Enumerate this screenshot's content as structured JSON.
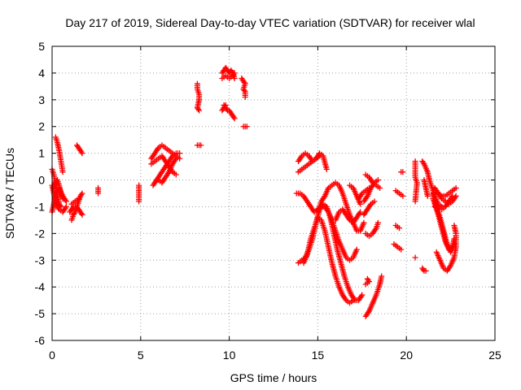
{
  "chart_data": {
    "type": "scatter",
    "title": "Day 217 of 2019, Sidereal Day-to-day VTEC variation (SDTVAR) for receiver wlal",
    "xlabel": "GPS time / hours",
    "ylabel": "SDTVAR / TECUs",
    "xlim": [
      0,
      25
    ],
    "ylim": [
      -6,
      5
    ],
    "xticks": [
      "0",
      "5",
      "10",
      "15",
      "20",
      "25"
    ],
    "yticks": [
      "-6",
      "-5",
      "-4",
      "-3",
      "-2",
      "-1",
      "0",
      "1",
      "2",
      "3",
      "4",
      "5"
    ],
    "grid": true,
    "marker": "+",
    "marker_color": "#ff0000",
    "tracks": [
      [
        [
          0.0,
          0.4
        ],
        [
          0.1,
          0.2
        ],
        [
          0.2,
          -0.2
        ],
        [
          0.3,
          -0.6
        ],
        [
          0.4,
          -0.9
        ],
        [
          0.5,
          -1.0
        ]
      ],
      [
        [
          0.0,
          -0.2
        ],
        [
          0.1,
          -0.5
        ],
        [
          0.2,
          -0.8
        ],
        [
          0.3,
          -1.0
        ],
        [
          0.4,
          -1.1
        ],
        [
          0.6,
          -1.2
        ],
        [
          0.8,
          -1.0
        ]
      ],
      [
        [
          0.0,
          -1.2
        ],
        [
          0.1,
          -0.9
        ],
        [
          0.2,
          -0.6
        ],
        [
          0.3,
          -0.4
        ],
        [
          0.4,
          -0.3
        ],
        [
          0.6,
          -0.6
        ],
        [
          0.8,
          -0.8
        ]
      ],
      [
        [
          0.1,
          -0.3
        ],
        [
          0.2,
          -0.1
        ],
        [
          0.3,
          0.0
        ],
        [
          0.4,
          -0.2
        ],
        [
          0.5,
          -0.5
        ],
        [
          0.6,
          -0.7
        ]
      ],
      [
        [
          0.2,
          1.6
        ],
        [
          0.3,
          1.4
        ],
        [
          0.4,
          1.1
        ],
        [
          0.5,
          0.7
        ],
        [
          0.6,
          0.3
        ]
      ],
      [
        [
          1.1,
          -1.5
        ],
        [
          1.2,
          -1.3
        ],
        [
          1.3,
          -1.2
        ],
        [
          1.4,
          -1.0
        ],
        [
          1.5,
          -0.8
        ],
        [
          1.6,
          -0.6
        ],
        [
          1.7,
          -0.5
        ]
      ],
      [
        [
          1.0,
          -1.2
        ],
        [
          1.2,
          -1.0
        ],
        [
          1.4,
          -1.0
        ],
        [
          1.6,
          -1.2
        ],
        [
          1.7,
          -1.3
        ]
      ],
      [
        [
          1.1,
          -0.9
        ],
        [
          1.3,
          -0.8
        ],
        [
          1.5,
          -0.7
        ]
      ],
      [
        [
          1.4,
          1.3
        ],
        [
          1.5,
          1.2
        ],
        [
          1.6,
          1.1
        ],
        [
          1.7,
          1.0
        ]
      ],
      [
        [
          2.6,
          -0.3
        ],
        [
          2.6,
          -0.5
        ]
      ],
      [
        [
          4.9,
          -0.2
        ],
        [
          4.9,
          -0.4
        ],
        [
          4.9,
          -0.6
        ],
        [
          4.9,
          -0.8
        ]
      ],
      [
        [
          5.6,
          0.8
        ],
        [
          5.8,
          1.0
        ],
        [
          6.0,
          1.2
        ],
        [
          6.2,
          1.3
        ],
        [
          6.4,
          1.2
        ],
        [
          6.6,
          1.1
        ],
        [
          6.8,
          1.0
        ],
        [
          7.0,
          0.9
        ],
        [
          7.2,
          0.8
        ]
      ],
      [
        [
          5.6,
          0.6
        ],
        [
          5.8,
          0.7
        ],
        [
          6.0,
          0.8
        ],
        [
          6.2,
          0.9
        ],
        [
          6.4,
          0.7
        ],
        [
          6.6,
          0.5
        ],
        [
          6.8,
          0.3
        ],
        [
          7.0,
          0.2
        ]
      ],
      [
        [
          5.7,
          -0.2
        ],
        [
          5.8,
          -0.1
        ],
        [
          6.0,
          0.1
        ],
        [
          6.2,
          0.3
        ],
        [
          6.4,
          0.5
        ],
        [
          6.6,
          0.7
        ],
        [
          6.8,
          0.9
        ],
        [
          7.0,
          1.0
        ],
        [
          7.2,
          1.0
        ]
      ],
      [
        [
          6.0,
          0.0
        ],
        [
          6.2,
          -0.1
        ],
        [
          6.4,
          0.1
        ],
        [
          6.6,
          0.3
        ],
        [
          6.8,
          0.6
        ],
        [
          7.0,
          0.8
        ]
      ],
      [
        [
          8.2,
          3.6
        ],
        [
          8.2,
          3.4
        ],
        [
          8.3,
          3.2
        ],
        [
          8.3,
          3.0
        ],
        [
          8.2,
          2.7
        ],
        [
          8.3,
          2.6
        ]
      ],
      [
        [
          8.2,
          1.3
        ],
        [
          8.4,
          1.3
        ]
      ],
      [
        [
          9.6,
          4.0
        ],
        [
          9.7,
          4.1
        ],
        [
          9.8,
          4.2
        ],
        [
          9.9,
          4.1
        ],
        [
          10.0,
          4.0
        ],
        [
          10.1,
          4.1
        ],
        [
          10.2,
          4.0
        ],
        [
          10.3,
          3.8
        ]
      ],
      [
        [
          9.6,
          3.8
        ],
        [
          9.8,
          3.9
        ],
        [
          10.0,
          3.8
        ],
        [
          10.2,
          3.9
        ],
        [
          10.3,
          4.0
        ]
      ],
      [
        [
          9.7,
          2.8
        ],
        [
          9.8,
          2.7
        ],
        [
          9.9,
          2.6
        ],
        [
          10.0,
          2.6
        ],
        [
          10.1,
          2.5
        ],
        [
          10.2,
          2.4
        ],
        [
          10.3,
          2.3
        ]
      ],
      [
        [
          9.6,
          2.6
        ],
        [
          9.7,
          2.7
        ],
        [
          9.8,
          2.8
        ]
      ],
      [
        [
          10.7,
          3.8
        ],
        [
          10.8,
          3.7
        ],
        [
          10.9,
          3.6
        ],
        [
          10.8,
          3.4
        ],
        [
          10.9,
          3.3
        ],
        [
          10.9,
          3.1
        ]
      ],
      [
        [
          10.8,
          2.0
        ],
        [
          11.0,
          2.0
        ]
      ],
      [
        [
          13.9,
          0.7
        ],
        [
          14.1,
          0.9
        ],
        [
          14.3,
          1.0
        ],
        [
          14.5,
          0.9
        ],
        [
          14.7,
          0.7
        ],
        [
          14.9,
          0.8
        ],
        [
          15.1,
          1.0
        ],
        [
          15.3,
          0.9
        ],
        [
          15.5,
          0.4
        ]
      ],
      [
        [
          13.9,
          0.3
        ],
        [
          14.1,
          0.4
        ],
        [
          14.3,
          0.5
        ],
        [
          14.5,
          0.6
        ],
        [
          14.7,
          0.7
        ],
        [
          14.9,
          0.8
        ],
        [
          15.1,
          0.9
        ]
      ],
      [
        [
          13.8,
          -0.5
        ],
        [
          14.0,
          -0.5
        ],
        [
          14.2,
          -0.6
        ],
        [
          14.4,
          -0.8
        ],
        [
          14.6,
          -1.0
        ],
        [
          14.8,
          -1.2
        ],
        [
          15.0,
          -1.1
        ],
        [
          15.2,
          -1.0
        ],
        [
          15.4,
          -1.0
        ],
        [
          15.6,
          -1.2
        ],
        [
          15.8,
          -1.5
        ],
        [
          16.0,
          -1.9
        ],
        [
          16.2,
          -2.3
        ],
        [
          16.4,
          -2.6
        ],
        [
          16.6,
          -2.9
        ],
        [
          16.8,
          -3.0
        ],
        [
          17.0,
          -2.9
        ],
        [
          17.2,
          -2.6
        ]
      ],
      [
        [
          13.9,
          -3.1
        ],
        [
          14.1,
          -3.0
        ],
        [
          14.3,
          -2.9
        ],
        [
          14.5,
          -2.6
        ],
        [
          14.7,
          -2.2
        ],
        [
          14.9,
          -1.6
        ],
        [
          15.1,
          -1.1
        ],
        [
          15.3,
          -0.9
        ],
        [
          15.5,
          -1.0
        ],
        [
          15.7,
          -1.4
        ],
        [
          15.9,
          -2.0
        ],
        [
          16.1,
          -2.6
        ],
        [
          16.3,
          -3.1
        ],
        [
          16.5,
          -3.6
        ],
        [
          16.7,
          -4.0
        ],
        [
          16.9,
          -4.3
        ],
        [
          17.1,
          -4.5
        ],
        [
          17.3,
          -4.5
        ],
        [
          17.5,
          -4.3
        ]
      ],
      [
        [
          14.2,
          -3.1
        ],
        [
          14.4,
          -2.8
        ],
        [
          14.6,
          -2.2
        ],
        [
          14.8,
          -1.8
        ],
        [
          15.0,
          -1.4
        ],
        [
          15.2,
          -1.5
        ],
        [
          15.4,
          -1.9
        ],
        [
          15.6,
          -2.5
        ],
        [
          15.8,
          -3.1
        ],
        [
          16.0,
          -3.6
        ],
        [
          16.2,
          -4.0
        ],
        [
          16.4,
          -4.3
        ],
        [
          16.6,
          -4.5
        ],
        [
          16.8,
          -4.6
        ],
        [
          17.0,
          -4.5
        ]
      ],
      [
        [
          15.0,
          -1.2
        ],
        [
          15.2,
          -0.8
        ],
        [
          15.4,
          -0.6
        ],
        [
          15.6,
          -0.3
        ],
        [
          15.8,
          -0.2
        ],
        [
          16.0,
          -0.1
        ],
        [
          16.2,
          -0.2
        ],
        [
          16.4,
          -0.5
        ],
        [
          16.6,
          -0.9
        ],
        [
          16.8,
          -1.3
        ],
        [
          17.0,
          -1.6
        ],
        [
          17.2,
          -1.9
        ],
        [
          17.4,
          -1.9
        ],
        [
          17.6,
          -1.6
        ]
      ],
      [
        [
          16.0,
          -1.5
        ],
        [
          16.2,
          -1.2
        ],
        [
          16.4,
          -1.1
        ],
        [
          16.6,
          -1.3
        ],
        [
          16.8,
          -1.5
        ],
        [
          17.0,
          -1.6
        ],
        [
          17.2,
          -1.4
        ],
        [
          17.4,
          -1.2
        ]
      ],
      [
        [
          17.3,
          -0.7
        ],
        [
          17.5,
          -0.5
        ],
        [
          17.7,
          -0.4
        ],
        [
          17.9,
          -0.3
        ]
      ],
      [
        [
          16.8,
          -0.2
        ],
        [
          17.0,
          -0.3
        ],
        [
          17.2,
          -0.6
        ],
        [
          17.4,
          -0.9
        ]
      ],
      [
        [
          17.7,
          0.2
        ],
        [
          17.9,
          0.1
        ],
        [
          18.1,
          -0.1
        ],
        [
          18.3,
          -0.2
        ],
        [
          18.5,
          -0.3
        ]
      ],
      [
        [
          17.6,
          -0.8
        ],
        [
          17.8,
          -0.6
        ],
        [
          18.0,
          -0.3
        ],
        [
          18.2,
          -0.1
        ],
        [
          18.4,
          0.0
        ]
      ],
      [
        [
          17.6,
          -1.3
        ],
        [
          17.8,
          -1.1
        ],
        [
          18.0,
          -0.9
        ],
        [
          18.2,
          -0.8
        ]
      ],
      [
        [
          17.7,
          -2.0
        ],
        [
          17.9,
          -2.1
        ],
        [
          18.1,
          -2.0
        ],
        [
          18.3,
          -1.8
        ],
        [
          18.4,
          -1.6
        ]
      ],
      [
        [
          17.7,
          -3.9
        ],
        [
          17.9,
          -3.8
        ],
        [
          17.8,
          -3.7
        ]
      ],
      [
        [
          17.7,
          -5.1
        ],
        [
          17.9,
          -4.9
        ],
        [
          18.1,
          -4.6
        ],
        [
          18.3,
          -4.3
        ],
        [
          18.5,
          -3.9
        ],
        [
          18.6,
          -3.6
        ]
      ],
      [
        [
          19.4,
          -0.4
        ],
        [
          19.6,
          -0.5
        ],
        [
          19.8,
          -0.6
        ]
      ],
      [
        [
          19.7,
          0.3
        ],
        [
          19.8,
          0.3
        ]
      ],
      [
        [
          19.4,
          -1.7
        ],
        [
          19.6,
          -1.8
        ]
      ],
      [
        [
          19.3,
          -2.4
        ],
        [
          19.5,
          -2.5
        ],
        [
          19.7,
          -2.6
        ]
      ],
      [
        [
          20.5,
          0.7
        ],
        [
          20.5,
          0.5
        ],
        [
          20.5,
          0.3
        ],
        [
          20.5,
          0.1
        ],
        [
          20.6,
          -0.1
        ],
        [
          20.5,
          -0.8
        ]
      ],
      [
        [
          20.5,
          -2.9
        ]
      ],
      [
        [
          20.9,
          -3.3
        ],
        [
          21.0,
          -3.4
        ],
        [
          21.1,
          -3.4
        ]
      ],
      [
        [
          20.9,
          0.7
        ],
        [
          21.0,
          0.6
        ],
        [
          21.2,
          0.3
        ],
        [
          21.3,
          0.0
        ],
        [
          21.4,
          -0.2
        ],
        [
          21.6,
          -0.6
        ],
        [
          21.8,
          -0.9
        ],
        [
          22.0,
          -1.0
        ]
      ],
      [
        [
          21.0,
          0.0
        ],
        [
          21.1,
          -0.3
        ],
        [
          21.2,
          -0.6
        ]
      ],
      [
        [
          21.5,
          -0.5
        ],
        [
          21.6,
          -0.9
        ],
        [
          21.8,
          -1.3
        ],
        [
          22.0,
          -1.8
        ],
        [
          22.2,
          -2.3
        ],
        [
          22.4,
          -2.6
        ],
        [
          22.6,
          -2.5
        ],
        [
          22.7,
          -2.2
        ]
      ],
      [
        [
          21.5,
          -0.7
        ],
        [
          21.7,
          -1.0
        ],
        [
          21.9,
          -1.4
        ],
        [
          22.1,
          -1.9
        ],
        [
          22.3,
          -2.4
        ],
        [
          22.5,
          -2.7
        ],
        [
          22.7,
          -2.4
        ]
      ],
      [
        [
          21.6,
          -0.3
        ],
        [
          21.8,
          -0.5
        ],
        [
          22.0,
          -0.6
        ],
        [
          22.2,
          -0.6
        ],
        [
          22.4,
          -0.5
        ],
        [
          22.6,
          -0.4
        ],
        [
          22.8,
          -0.3
        ]
      ],
      [
        [
          21.7,
          -2.7
        ],
        [
          21.9,
          -3.0
        ],
        [
          22.1,
          -3.3
        ],
        [
          22.3,
          -3.4
        ],
        [
          22.5,
          -3.2
        ],
        [
          22.7,
          -2.9
        ],
        [
          22.8,
          -2.5
        ],
        [
          22.8,
          -2.0
        ],
        [
          22.7,
          -1.7
        ]
      ],
      [
        [
          21.8,
          -0.5
        ],
        [
          22.0,
          -0.7
        ],
        [
          22.2,
          -0.8
        ],
        [
          22.4,
          -0.9
        ],
        [
          22.6,
          -0.8
        ],
        [
          22.8,
          -0.6
        ]
      ],
      [
        [
          21.6,
          -1.0
        ],
        [
          21.8,
          -1.0
        ],
        [
          22.0,
          -1.1
        ],
        [
          22.2,
          -1.0
        ],
        [
          22.4,
          -0.8
        ],
        [
          22.6,
          -0.6
        ]
      ]
    ]
  }
}
